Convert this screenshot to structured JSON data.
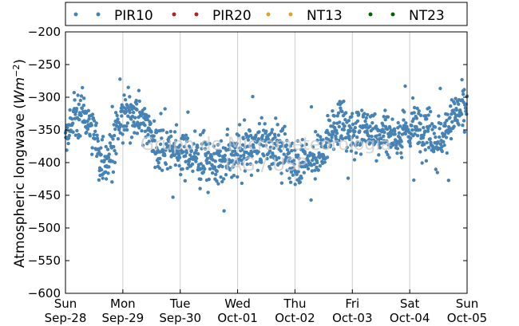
{
  "chart_data": {
    "type": "scatter",
    "ylabel_text": "Atmospheric longwave (",
    "ylabel_math": "Wm",
    "ylabel_exp": "−2",
    "ylabel_close": ")",
    "ylim": [
      -600,
      -200
    ],
    "yticks": [
      -200,
      -250,
      -300,
      -350,
      -400,
      -450,
      -500,
      -550,
      -600
    ],
    "ytick_labels": [
      "−200",
      "−250",
      "−300",
      "−350",
      "−400",
      "−450",
      "−500",
      "−550",
      "−600"
    ],
    "xlim": [
      0,
      7
    ],
    "xticks": [
      {
        "pos": 0,
        "day": "Sun",
        "date": "Sep-28"
      },
      {
        "pos": 1,
        "day": "Mon",
        "date": "Sep-29"
      },
      {
        "pos": 2,
        "day": "Tue",
        "date": "Sep-30"
      },
      {
        "pos": 3,
        "day": "Wed",
        "date": "Oct-01"
      },
      {
        "pos": 4,
        "day": "Thu",
        "date": "Oct-02"
      },
      {
        "pos": 5,
        "day": "Fri",
        "date": "Oct-03"
      },
      {
        "pos": 6,
        "day": "Sat",
        "date": "Oct-04"
      },
      {
        "pos": 7,
        "day": "Sun",
        "date": "Oct-05"
      }
    ],
    "grid": "vertical",
    "legend_position": "top",
    "series": [
      {
        "name": "PIR10",
        "color": "#4682b4"
      },
      {
        "name": "PIR20",
        "color": "#b22222"
      },
      {
        "name": "NT13",
        "color": "#daa520"
      },
      {
        "name": "NT23",
        "color": "#006400"
      }
    ],
    "pir10_profile": [
      [
        0.0,
        -355
      ],
      [
        0.25,
        -320
      ],
      [
        0.45,
        -345
      ],
      [
        0.6,
        -395
      ],
      [
        0.75,
        -390
      ],
      [
        0.95,
        -340
      ],
      [
        1.2,
        -320
      ],
      [
        1.45,
        -345
      ],
      [
        1.6,
        -380
      ],
      [
        1.8,
        -375
      ],
      [
        2.1,
        -385
      ],
      [
        2.4,
        -395
      ],
      [
        2.7,
        -400
      ],
      [
        3.0,
        -390
      ],
      [
        3.2,
        -375
      ],
      [
        3.5,
        -370
      ],
      [
        3.75,
        -380
      ],
      [
        4.0,
        -400
      ],
      [
        4.25,
        -395
      ],
      [
        4.45,
        -390
      ],
      [
        4.6,
        -355
      ],
      [
        4.8,
        -335
      ],
      [
        5.0,
        -360
      ],
      [
        5.2,
        -345
      ],
      [
        5.5,
        -355
      ],
      [
        5.75,
        -360
      ],
      [
        6.0,
        -350
      ],
      [
        6.3,
        -345
      ],
      [
        6.55,
        -365
      ],
      [
        6.75,
        -330
      ],
      [
        7.0,
        -315
      ]
    ],
    "pir10_spread": 32,
    "pir10_samples_per_day": 180,
    "watermark": [
      "Grupo de Micrometeorologia",
      "IAG / USP"
    ]
  }
}
